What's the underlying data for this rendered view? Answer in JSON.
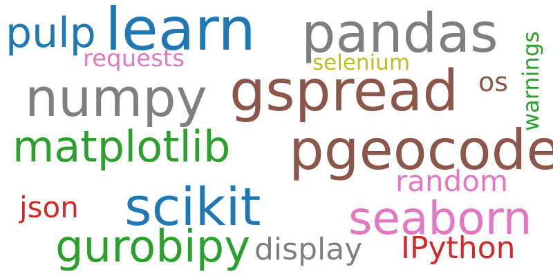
{
  "colors": {
    "blue": "#1f77b4",
    "gray": "#7f7f7f",
    "brown": "#8c564b",
    "green": "#2ca02c",
    "pink": "#e377c2",
    "red": "#d62728",
    "olive": "#bcbd22"
  },
  "words": [
    {
      "text": "pulp",
      "color": "blue"
    },
    {
      "text": "learn",
      "color": "blue"
    },
    {
      "text": "pandas",
      "color": "gray"
    },
    {
      "text": "warnings",
      "color": "green"
    },
    {
      "text": "requests",
      "color": "pink"
    },
    {
      "text": "selenium",
      "color": "olive"
    },
    {
      "text": "numpy",
      "color": "gray"
    },
    {
      "text": "gspread",
      "color": "brown"
    },
    {
      "text": "os",
      "color": "brown"
    },
    {
      "text": "matplotlib",
      "color": "green"
    },
    {
      "text": "pgeocode",
      "color": "brown"
    },
    {
      "text": "random",
      "color": "pink"
    },
    {
      "text": "json",
      "color": "red"
    },
    {
      "text": "scikit",
      "color": "blue"
    },
    {
      "text": "seaborn",
      "color": "pink"
    },
    {
      "text": "gurobipy",
      "color": "green"
    },
    {
      "text": "display",
      "color": "gray"
    },
    {
      "text": "IPython",
      "color": "red"
    }
  ]
}
